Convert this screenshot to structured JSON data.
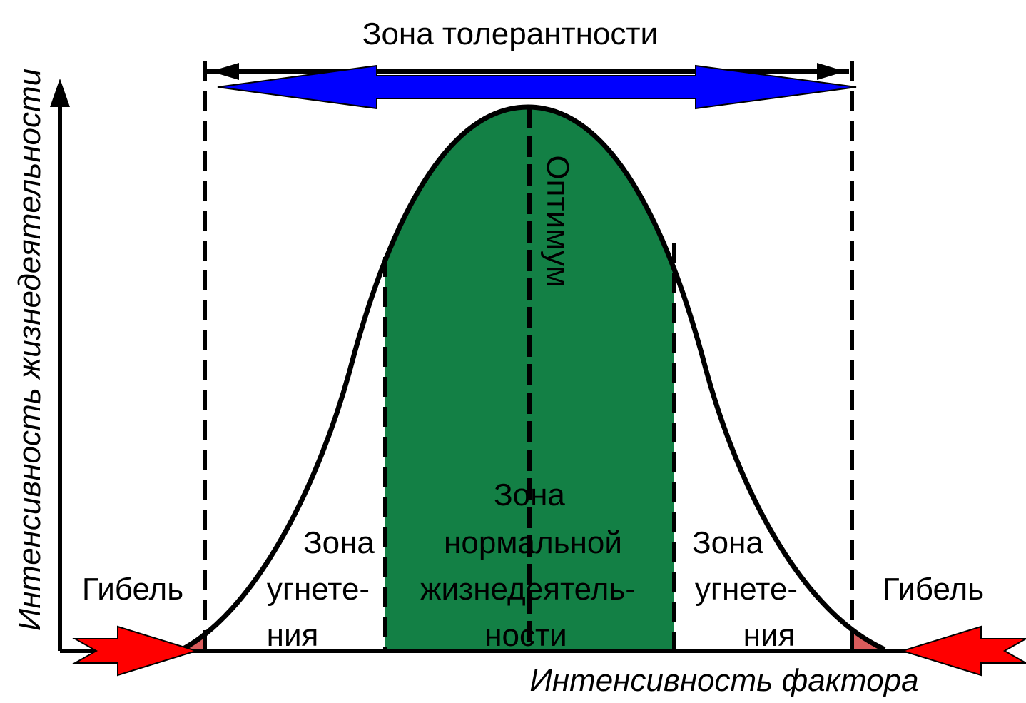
{
  "diagram": {
    "title": "Зона толерантности",
    "y_axis_label": "Интенсивность жизнедеятельности",
    "x_axis_label": "Интенсивность фактора",
    "optimum_label": "Оптимум",
    "death_left": "Гибель",
    "death_right": "Гибель",
    "oppression_left": [
      "Зона",
      "угнете-",
      "ния"
    ],
    "oppression_right": [
      "Зона",
      "угнете-",
      "ния"
    ],
    "normal_zone": [
      "Зона",
      "нормальной",
      "жизнедеятель-",
      "ности"
    ]
  },
  "colors": {
    "normal_zone_fill": "#138045",
    "tolerance_arrow": "#0000ff",
    "limit_arrows": "#ff0000",
    "death_zone_fill": "#d95c5c",
    "line": "#000000"
  }
}
